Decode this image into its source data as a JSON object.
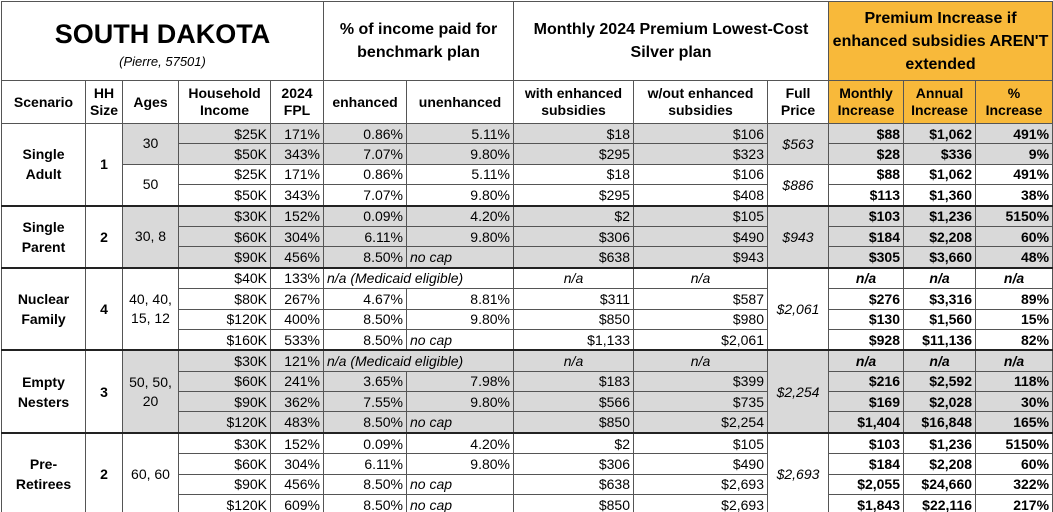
{
  "header": {
    "title": "SOUTH DAKOTA",
    "subtitle": "(Pierre, 57501)",
    "income_group": "% of income paid for benchmark plan",
    "premium_group": "Monthly 2024 Premium Lowest-Cost Silver plan",
    "increase_group": "Premium Increase if enhanced subsidies AREN'T extended"
  },
  "columns": [
    "Scenario",
    "HH Size",
    "Ages",
    "Household Income",
    "2024 FPL",
    "enhanced",
    "unenhanced",
    "with enhanced subsidies",
    "w/out enhanced subsidies",
    "Full Price",
    "Monthly Increase",
    "Annual Increase",
    "% Increase"
  ],
  "groups": [
    {
      "scenario": "Single Adult",
      "hh_size": "1",
      "age_groups": [
        {
          "ages": "30",
          "full_price": "$563",
          "rows": [
            [
              "$25K",
              "171%",
              "0.86%",
              "5.11%",
              "$18",
              "$106",
              "$88",
              "$1,062",
              "491%"
            ],
            [
              "$50K",
              "343%",
              "7.07%",
              "9.80%",
              "$295",
              "$323",
              "$28",
              "$336",
              "9%"
            ]
          ]
        },
        {
          "ages": "50",
          "full_price": "$886",
          "rows": [
            [
              "$25K",
              "171%",
              "0.86%",
              "5.11%",
              "$18",
              "$106",
              "$88",
              "$1,062",
              "491%"
            ],
            [
              "$50K",
              "343%",
              "7.07%",
              "9.80%",
              "$295",
              "$408",
              "$113",
              "$1,360",
              "38%"
            ]
          ]
        }
      ]
    },
    {
      "scenario": "Single Parent",
      "hh_size": "2",
      "age_groups": [
        {
          "ages": "30, 8",
          "full_price": "$943",
          "rows": [
            [
              "$30K",
              "152%",
              "0.09%",
              "4.20%",
              "$2",
              "$105",
              "$103",
              "$1,236",
              "5150%"
            ],
            [
              "$60K",
              "304%",
              "6.11%",
              "9.80%",
              "$306",
              "$490",
              "$184",
              "$2,208",
              "60%"
            ],
            [
              "$90K",
              "456%",
              "8.50%",
              "no cap",
              "$638",
              "$943",
              "$305",
              "$3,660",
              "48%"
            ]
          ]
        }
      ]
    },
    {
      "scenario": "Nuclear Family",
      "hh_size": "4",
      "age_groups": [
        {
          "ages": "40, 40, 15, 12",
          "full_price": "$2,061",
          "rows": [
            [
              "$40K",
              "133%",
              "n/a (Medicaid eligible)",
              "n/a",
              "n/a",
              "n/a",
              "n/a",
              "n/a"
            ],
            [
              "$80K",
              "267%",
              "4.67%",
              "8.81%",
              "$311",
              "$587",
              "$276",
              "$3,316",
              "89%"
            ],
            [
              "$120K",
              "400%",
              "8.50%",
              "9.80%",
              "$850",
              "$980",
              "$130",
              "$1,560",
              "15%"
            ],
            [
              "$160K",
              "533%",
              "8.50%",
              "no cap",
              "$1,133",
              "$2,061",
              "$928",
              "$11,136",
              "82%"
            ]
          ]
        }
      ]
    },
    {
      "scenario": "Empty Nesters",
      "hh_size": "3",
      "age_groups": [
        {
          "ages": "50, 50, 20",
          "full_price": "$2,254",
          "rows": [
            [
              "$30K",
              "121%",
              "n/a (Medicaid eligible)",
              "n/a",
              "n/a",
              "n/a",
              "n/a",
              "n/a"
            ],
            [
              "$60K",
              "241%",
              "3.65%",
              "7.98%",
              "$183",
              "$399",
              "$216",
              "$2,592",
              "118%"
            ],
            [
              "$90K",
              "362%",
              "7.55%",
              "9.80%",
              "$566",
              "$735",
              "$169",
              "$2,028",
              "30%"
            ],
            [
              "$120K",
              "483%",
              "8.50%",
              "no cap",
              "$850",
              "$2,254",
              "$1,404",
              "$16,848",
              "165%"
            ]
          ]
        }
      ]
    },
    {
      "scenario": "Pre-Retirees",
      "hh_size": "2",
      "age_groups": [
        {
          "ages": "60, 60",
          "full_price": "$2,693",
          "rows": [
            [
              "$30K",
              "152%",
              "0.09%",
              "4.20%",
              "$2",
              "$105",
              "$103",
              "$1,236",
              "5150%"
            ],
            [
              "$60K",
              "304%",
              "6.11%",
              "9.80%",
              "$306",
              "$490",
              "$184",
              "$2,208",
              "60%"
            ],
            [
              "$90K",
              "456%",
              "8.50%",
              "no cap",
              "$638",
              "$2,693",
              "$2,055",
              "$24,660",
              "322%"
            ],
            [
              "$120K",
              "609%",
              "8.50%",
              "no cap",
              "$850",
              "$2,693",
              "$1,843",
              "$22,116",
              "217%"
            ]
          ]
        }
      ]
    }
  ]
}
